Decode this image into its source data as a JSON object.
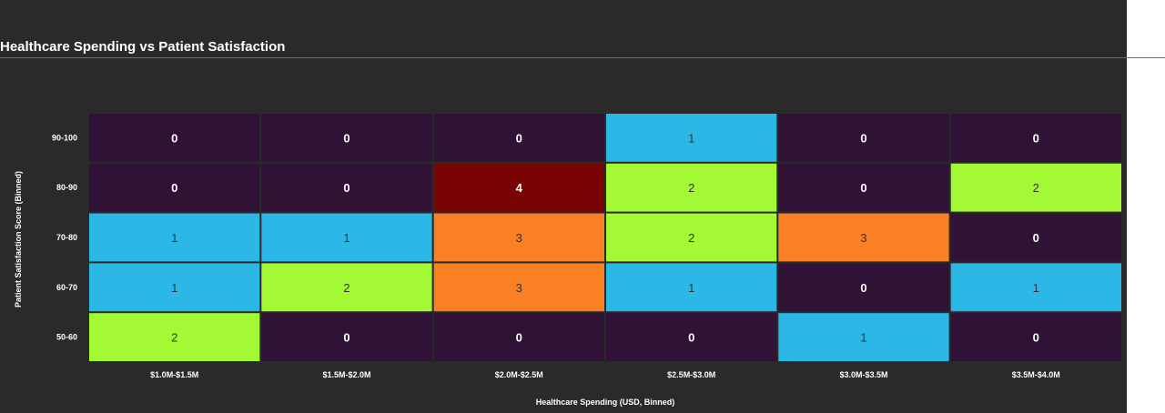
{
  "chart_data": {
    "type": "heatmap",
    "title": "Healthcare Spending vs Patient Satisfaction",
    "xlabel": "Healthcare Spending (USD, Binned)",
    "ylabel": "Patient Satisfaction Score (Binned)",
    "x_categories": [
      "$1.0M-$1.5M",
      "$1.5M-$2.0M",
      "$2.0M-$2.5M",
      "$2.5M-$3.0M",
      "$3.0M-$3.5M",
      "$3.5M-$4.0M"
    ],
    "y_categories": [
      "90-100",
      "80-90",
      "70-80",
      "60-70",
      "50-60"
    ],
    "values": [
      [
        0,
        0,
        0,
        1,
        0,
        0
      ],
      [
        0,
        0,
        4,
        2,
        0,
        2
      ],
      [
        1,
        1,
        3,
        2,
        3,
        0
      ],
      [
        1,
        2,
        3,
        1,
        0,
        1
      ],
      [
        2,
        0,
        0,
        0,
        1,
        0
      ]
    ],
    "color_scale": {
      "0": "#301237",
      "1": "#2bb8e6",
      "2": "#a2f934",
      "3": "#f98124",
      "4": "#7a0403"
    },
    "text_colors": {
      "dark_cell": "#ffffff",
      "light_cell": "#333333"
    }
  }
}
